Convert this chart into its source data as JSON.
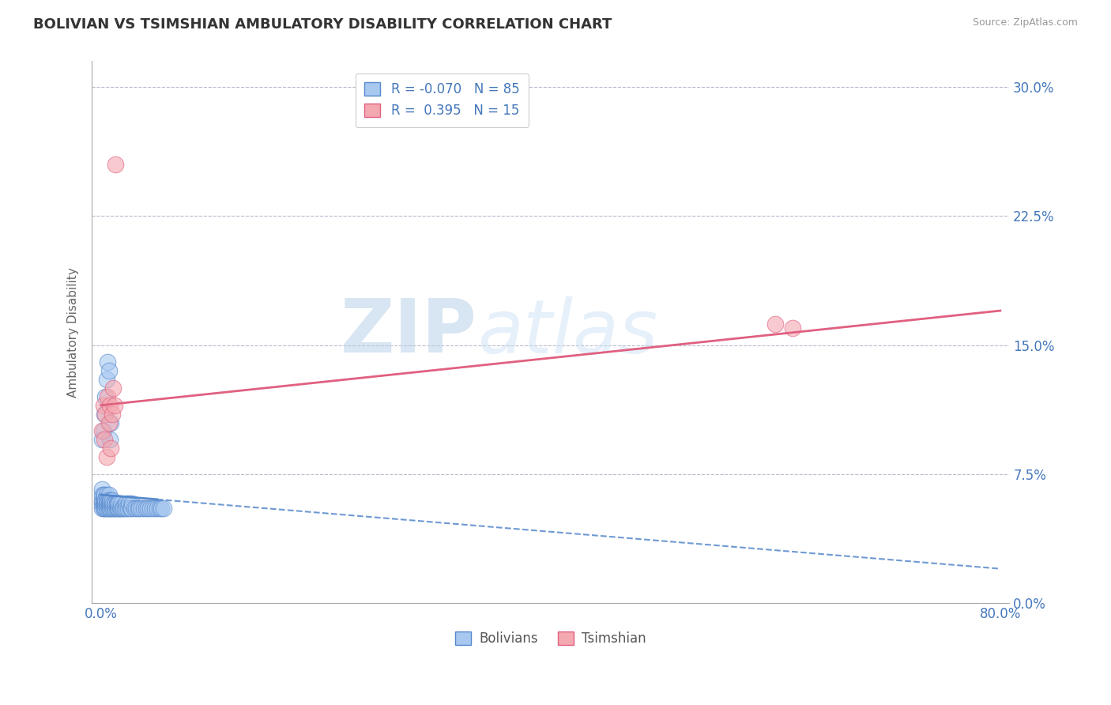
{
  "title": "BOLIVIAN VS TSIMSHIAN AMBULATORY DISABILITY CORRELATION CHART",
  "source": "Source: ZipAtlas.com",
  "xmin": 0.0,
  "xmax": 0.8,
  "ymin": 0.0,
  "ymax": 0.315,
  "ylabel": "Ambulatory Disability",
  "legend_labels": [
    "Bolivians",
    "Tsimshian"
  ],
  "bolivian_color": "#A8C8F0",
  "tsimshian_color": "#F4A8B0",
  "bolivian_line_color": "#5588CC",
  "tsimshian_line_color": "#E06080",
  "r_bolivian": -0.07,
  "n_bolivian": 85,
  "r_tsimshian": 0.395,
  "n_tsimshian": 15,
  "watermark_zip": "ZIP",
  "watermark_atlas": "atlas",
  "y_ticks": [
    0.0,
    0.075,
    0.15,
    0.225,
    0.3
  ],
  "y_tick_labels": [
    "0.0%",
    "7.5%",
    "15.0%",
    "22.5%",
    "30.0%"
  ],
  "x_ticks": [
    0.0,
    0.8
  ],
  "x_tick_labels": [
    "0.0%",
    "80.0%"
  ],
  "bolivian_x": [
    0.001,
    0.001,
    0.001,
    0.001,
    0.001,
    0.002,
    0.002,
    0.002,
    0.002,
    0.003,
    0.003,
    0.003,
    0.003,
    0.004,
    0.004,
    0.004,
    0.005,
    0.005,
    0.005,
    0.005,
    0.006,
    0.006,
    0.006,
    0.007,
    0.007,
    0.007,
    0.007,
    0.008,
    0.008,
    0.008,
    0.009,
    0.009,
    0.009,
    0.01,
    0.01,
    0.01,
    0.011,
    0.011,
    0.012,
    0.012,
    0.013,
    0.013,
    0.014,
    0.014,
    0.015,
    0.015,
    0.016,
    0.016,
    0.017,
    0.018,
    0.018,
    0.019,
    0.02,
    0.021,
    0.022,
    0.023,
    0.024,
    0.025,
    0.026,
    0.027,
    0.028,
    0.03,
    0.031,
    0.033,
    0.034,
    0.036,
    0.038,
    0.04,
    0.042,
    0.044,
    0.046,
    0.048,
    0.05,
    0.052,
    0.054,
    0.056,
    0.001,
    0.002,
    0.003,
    0.004,
    0.005,
    0.006,
    0.007,
    0.008,
    0.009
  ],
  "bolivian_y": [
    0.055,
    0.058,
    0.06,
    0.063,
    0.066,
    0.055,
    0.058,
    0.06,
    0.063,
    0.055,
    0.058,
    0.06,
    0.063,
    0.055,
    0.058,
    0.06,
    0.055,
    0.058,
    0.06,
    0.063,
    0.055,
    0.058,
    0.06,
    0.055,
    0.058,
    0.06,
    0.063,
    0.055,
    0.058,
    0.06,
    0.055,
    0.058,
    0.06,
    0.055,
    0.058,
    0.06,
    0.055,
    0.058,
    0.055,
    0.058,
    0.055,
    0.058,
    0.055,
    0.058,
    0.055,
    0.058,
    0.055,
    0.058,
    0.055,
    0.055,
    0.058,
    0.055,
    0.055,
    0.055,
    0.058,
    0.055,
    0.055,
    0.058,
    0.055,
    0.055,
    0.058,
    0.055,
    0.055,
    0.055,
    0.055,
    0.055,
    0.055,
    0.055,
    0.055,
    0.055,
    0.055,
    0.055,
    0.055,
    0.055,
    0.055,
    0.055,
    0.095,
    0.1,
    0.11,
    0.12,
    0.13,
    0.14,
    0.135,
    0.095,
    0.105
  ],
  "tsimshian_x": [
    0.001,
    0.002,
    0.003,
    0.004,
    0.005,
    0.006,
    0.007,
    0.008,
    0.009,
    0.01,
    0.011,
    0.012,
    0.013,
    0.6,
    0.615
  ],
  "tsimshian_y": [
    0.1,
    0.115,
    0.095,
    0.11,
    0.085,
    0.12,
    0.105,
    0.115,
    0.09,
    0.11,
    0.125,
    0.115,
    0.255,
    0.162,
    0.16
  ],
  "boli_trend_x": [
    0.0,
    0.8
  ],
  "boli_trend_y_start": 0.063,
  "boli_trend_y_end": 0.02,
  "tsim_trend_x": [
    0.0,
    0.8
  ],
  "tsim_trend_y_start": 0.115,
  "tsim_trend_y_end": 0.17
}
